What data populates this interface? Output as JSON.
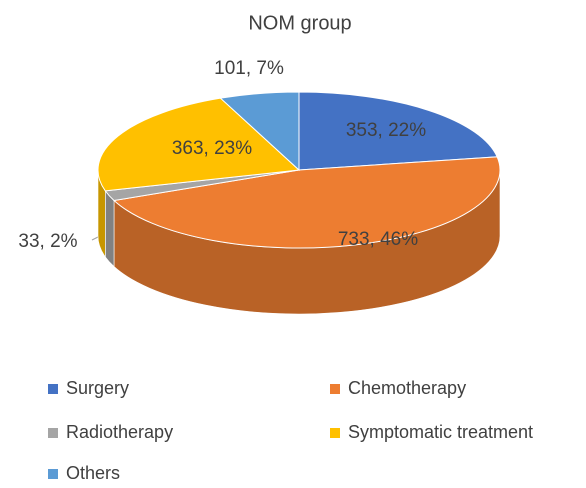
{
  "chart_data": {
    "type": "pie3d",
    "title": "NOM group",
    "categories": [
      "Surgery",
      "Chemotherapy",
      "Radiotherapy",
      "Symptomatic treatment",
      "Others"
    ],
    "values": [
      353,
      733,
      33,
      363,
      101
    ],
    "value_labels": [
      "353, 22%",
      "733, 46%",
      "33, 2%",
      "363, 23%",
      "101, 7%"
    ],
    "colors": [
      "#4472c4",
      "#ed7d31",
      "#a5a5a5",
      "#ffc000",
      "#5b9bd5"
    ]
  }
}
